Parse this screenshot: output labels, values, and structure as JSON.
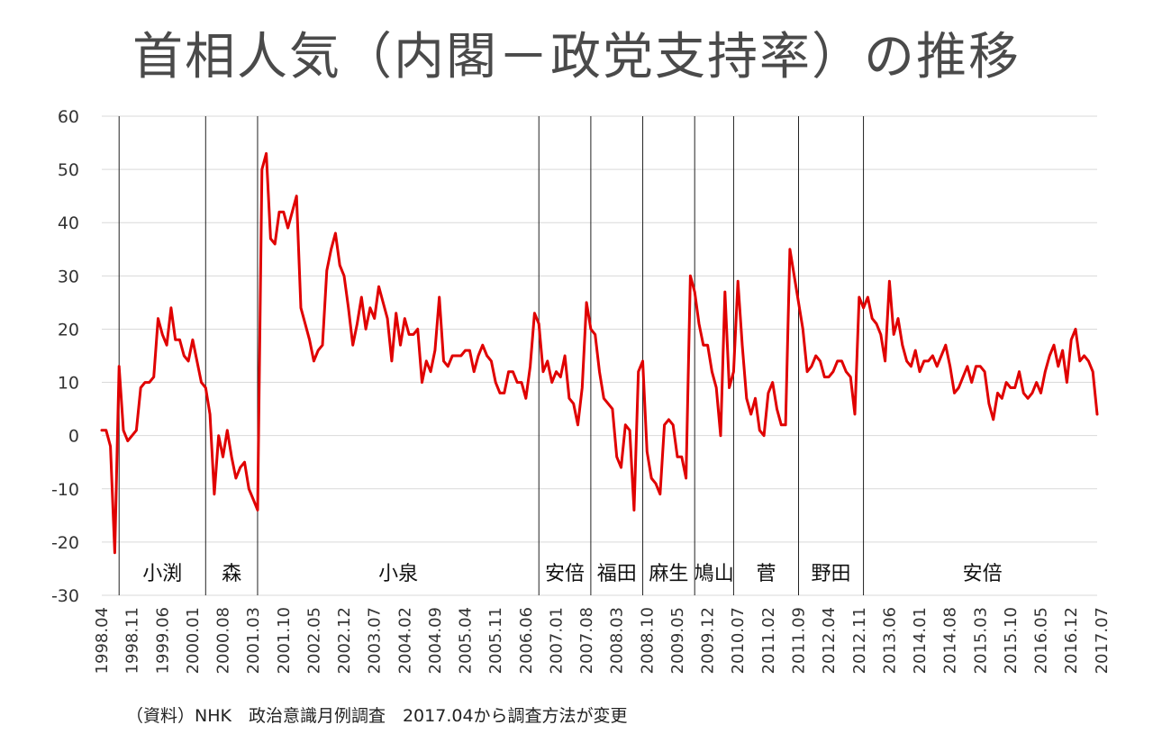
{
  "chart_data": {
    "type": "line",
    "title": "首相人気（内閣－政党支持率）の推移",
    "xlabel": "",
    "ylabel": "",
    "ylim": [
      -30,
      60
    ],
    "yticks": [
      60,
      50,
      40,
      30,
      20,
      10,
      0,
      -10,
      -20,
      -30
    ],
    "grid": true,
    "legend": "none",
    "line_color": "#e00000",
    "x_tick_labels": [
      "1998.04",
      "1998.11",
      "1999.06",
      "2000.01",
      "2000.08",
      "2001.03",
      "2001.10",
      "2002.05",
      "2002.12",
      "2003.07",
      "2004.02",
      "2004.09",
      "2005.04",
      "2005.11",
      "2006.06",
      "2007.01",
      "2007.08",
      "2008.03",
      "2008.10",
      "2009.05",
      "2009.12",
      "2010.07",
      "2011.02",
      "2011.09",
      "2012.04",
      "2012.11",
      "2013.06",
      "2014.01",
      "2014.08",
      "2015.03",
      "2015.10",
      "2016.05",
      "2016.12",
      "2017.07"
    ],
    "dividers": [
      "1998.08",
      "2000.04",
      "2001.04",
      "2006.09",
      "2007.09",
      "2008.09",
      "2009.09",
      "2010.06",
      "2011.09",
      "2012.12"
    ],
    "eras": [
      {
        "label": "小渕",
        "from": "1998.08",
        "to": "2000.04"
      },
      {
        "label": "森",
        "from": "2000.04",
        "to": "2001.04"
      },
      {
        "label": "小泉",
        "from": "2001.04",
        "to": "2006.09"
      },
      {
        "label": "安倍",
        "from": "2006.09",
        "to": "2007.09"
      },
      {
        "label": "福田",
        "from": "2007.09",
        "to": "2008.09"
      },
      {
        "label": "麻生",
        "from": "2008.09",
        "to": "2009.09"
      },
      {
        "label": "鳩山",
        "from": "2009.09",
        "to": "2010.06"
      },
      {
        "label": "菅",
        "from": "2010.06",
        "to": "2011.09"
      },
      {
        "label": "野田",
        "from": "2011.09",
        "to": "2012.12"
      },
      {
        "label": "安倍",
        "from": "2012.12",
        "to": "2017.07"
      }
    ],
    "series": [
      {
        "values": [
          1,
          1,
          -2,
          -22,
          13,
          1,
          -1,
          0,
          1,
          9,
          10,
          10,
          11,
          22,
          19,
          17,
          24,
          18,
          18,
          15,
          14,
          18,
          14,
          10,
          9,
          4,
          -11,
          0,
          -4,
          1,
          -4,
          -8,
          -6,
          -5,
          -10,
          -12,
          -14,
          50,
          53,
          37,
          36,
          42,
          42,
          39,
          42,
          45,
          24,
          21,
          18,
          14,
          16,
          17,
          31,
          35,
          38,
          32,
          30,
          24,
          17,
          21,
          26,
          20,
          24,
          22,
          28,
          25,
          22,
          14,
          23,
          17,
          22,
          19,
          19,
          20,
          10,
          14,
          12,
          16,
          26,
          14,
          13,
          15,
          15,
          15,
          16,
          16,
          12,
          15,
          17,
          15,
          14,
          10,
          8,
          8,
          12,
          12,
          10,
          10,
          7,
          13,
          23,
          21,
          12,
          14,
          10,
          12,
          11,
          15,
          7,
          6,
          2,
          9,
          25,
          20,
          19,
          12,
          7,
          6,
          5,
          -4,
          -6,
          2,
          1,
          -14,
          12,
          14,
          -3,
          -8,
          -9,
          -11,
          2,
          3,
          2,
          -4,
          -4,
          -8,
          30,
          27,
          21,
          17,
          17,
          12,
          9,
          0,
          27,
          9,
          12,
          29,
          17,
          7,
          4,
          7,
          1,
          0,
          8,
          10,
          5,
          2,
          2,
          35,
          30,
          25,
          20,
          12,
          13,
          15,
          14,
          11,
          11,
          12,
          14,
          14,
          12,
          11,
          4,
          26,
          24,
          26,
          22,
          21,
          19,
          14,
          29,
          19,
          22,
          17,
          14,
          13,
          16,
          12,
          14,
          14,
          15,
          13,
          15,
          17,
          13,
          8,
          9,
          11,
          13,
          10,
          13,
          13,
          12,
          6,
          3,
          8,
          7,
          10,
          9,
          9,
          12,
          8,
          7,
          8,
          10,
          8,
          12,
          15,
          17,
          13,
          16,
          10,
          18,
          20,
          14,
          15,
          14,
          12,
          4
        ]
      }
    ]
  },
  "footer": {
    "source": "（資料）NHK　政治意識月例調査　2017.04から調査方法が変更"
  }
}
